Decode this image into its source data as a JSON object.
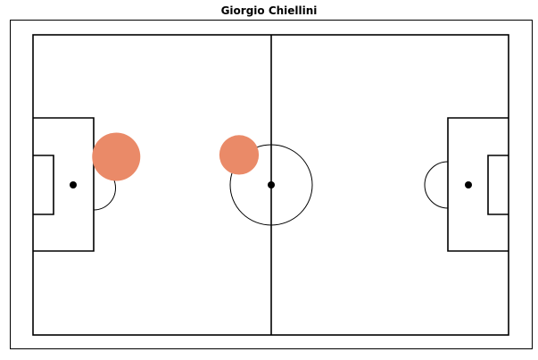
{
  "title": "Giorgio Chiellini",
  "colors": {
    "pitch_lines": "#000000",
    "marker": "#ea8a68",
    "background": "#ffffff"
  },
  "chart_data": {
    "type": "scatter",
    "title": "Giorgio Chiellini",
    "xlabel": "",
    "ylabel": "",
    "xlim": [
      0,
      120
    ],
    "ylim": [
      0,
      80
    ],
    "grid": false,
    "axes_visible": false,
    "background": "football-pitch",
    "series": [
      {
        "points": [
          {
            "x": 21,
            "y": 47.5,
            "size": 1.0
          },
          {
            "x": 52,
            "y": 48.0,
            "size": 0.82
          }
        ]
      }
    ]
  }
}
